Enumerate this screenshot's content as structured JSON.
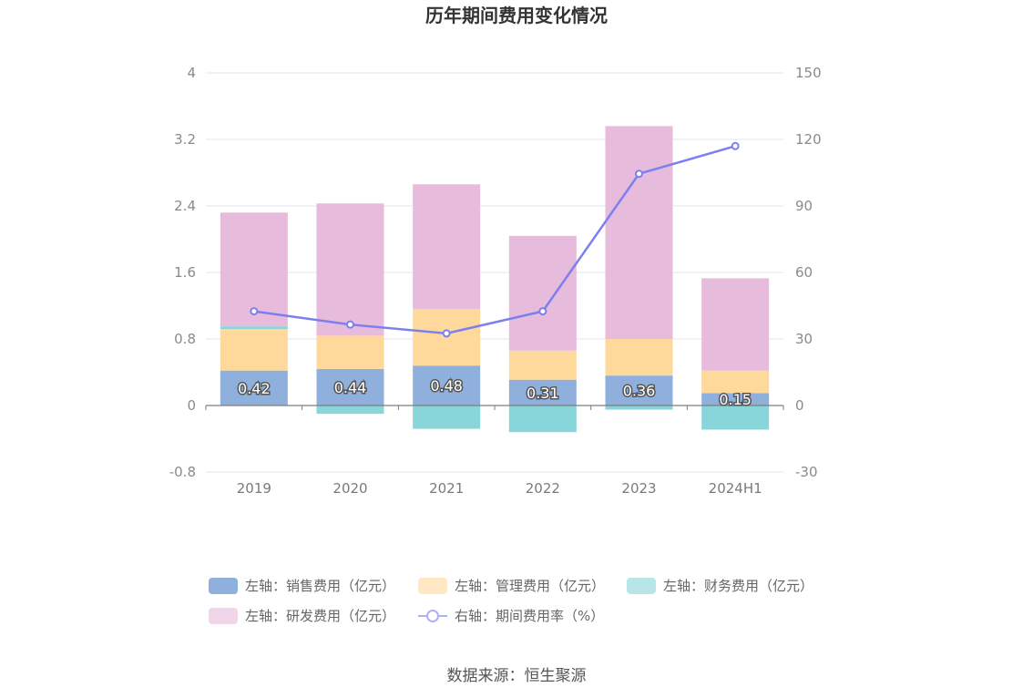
{
  "chart_data": {
    "type": "bar",
    "title": "历年期间费用变化情况",
    "categories": [
      "2019",
      "2020",
      "2021",
      "2022",
      "2023",
      "2024H1"
    ],
    "stacked": true,
    "left_axis": {
      "ylim": [
        -0.8,
        4
      ],
      "ticks": [
        "4",
        "3.2",
        "2.4",
        "1.6",
        "0.8",
        "0",
        "-0.8"
      ]
    },
    "right_axis": {
      "ylim": [
        -30,
        150
      ],
      "ticks": [
        "150",
        "120",
        "90",
        "60",
        "30",
        "0",
        "-30"
      ]
    },
    "series": [
      {
        "name": "左轴：销售费用（亿元）",
        "axis": "left",
        "type": "bar",
        "color": "#8fb0dc",
        "values": [
          0.42,
          0.44,
          0.48,
          0.31,
          0.36,
          0.15
        ],
        "labels": [
          "0.42",
          "0.44",
          "0.48",
          "0.31",
          "0.36",
          "0.15"
        ]
      },
      {
        "name": "左轴：管理费用（亿元）",
        "axis": "left",
        "type": "bar",
        "color": "#ffd99b",
        "values": [
          0.5,
          0.4,
          0.68,
          0.35,
          0.44,
          0.27
        ]
      },
      {
        "name": "左轴：财务费用（亿元）",
        "axis": "left",
        "type": "bar",
        "color": "#88d6d9",
        "values": [
          0.03,
          -0.1,
          -0.28,
          -0.32,
          -0.05,
          -0.29
        ]
      },
      {
        "name": "左轴：研发费用（亿元）",
        "axis": "left",
        "type": "bar",
        "color": "#e7bbdb",
        "values": [
          1.37,
          1.59,
          1.5,
          1.38,
          2.56,
          1.11
        ]
      },
      {
        "name": "右轴：期间费用率（%）",
        "axis": "right",
        "type": "line",
        "color": "#7b7ff0",
        "values": [
          42.5,
          36.5,
          32.5,
          42.5,
          104.5,
          117.0
        ]
      }
    ],
    "grid": true,
    "legend_position": "bottom"
  },
  "source_text": "数据来源：恒生聚源"
}
